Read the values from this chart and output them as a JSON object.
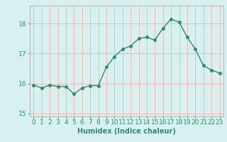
{
  "x": [
    0,
    1,
    2,
    3,
    4,
    5,
    6,
    7,
    8,
    9,
    10,
    11,
    12,
    13,
    14,
    15,
    16,
    17,
    18,
    19,
    20,
    21,
    22,
    23
  ],
  "y": [
    15.95,
    15.85,
    15.95,
    15.9,
    15.9,
    15.65,
    15.85,
    15.93,
    15.93,
    16.55,
    16.9,
    17.15,
    17.25,
    17.5,
    17.55,
    17.45,
    17.85,
    18.15,
    18.05,
    17.55,
    17.15,
    16.6,
    16.45,
    16.35
  ],
  "xlabel": "Humidex (Indice chaleur)",
  "ylim": [
    14.9,
    18.6
  ],
  "yticks": [
    15,
    16,
    17,
    18
  ],
  "xticks": [
    0,
    1,
    2,
    3,
    4,
    5,
    6,
    7,
    8,
    9,
    10,
    11,
    12,
    13,
    14,
    15,
    16,
    17,
    18,
    19,
    20,
    21,
    22,
    23
  ],
  "line_color": "#2e8b72",
  "bg_color": "#d8f0f0",
  "grid_color": "#f0b8b8",
  "marker": "o",
  "markersize": 2.5,
  "linewidth": 1.0,
  "xlabel_fontsize": 7,
  "tick_fontsize": 6.5,
  "title": ""
}
